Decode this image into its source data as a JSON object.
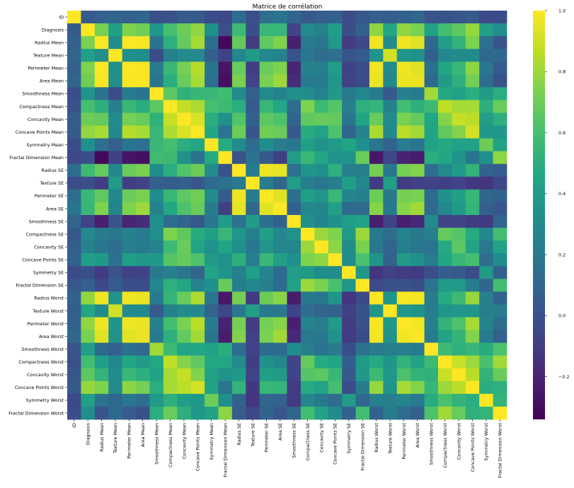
{
  "chart_data": {
    "type": "heatmap",
    "title": "Matrice de corrélation",
    "labels": [
      "ID",
      "Diagnosis",
      "Radius Mean",
      "Texture Mean",
      "Perimeter Mean",
      "Area Mean",
      "Smoothness Mean",
      "Compactness Mean",
      "Concavity Mean",
      "Concave Points Mean",
      "Symmetry Mean",
      "Fractal Dimension Mean",
      "Radius SE",
      "Texture SE",
      "Perimeter SE",
      "Area SE",
      "Smoothness SE",
      "Compactness SE",
      "Concavity SE",
      "Concave Points SE",
      "Symmetry SE",
      "Fractal Dimension SE",
      "Radius Worst",
      "Texture Worst",
      "Perimeter Worst",
      "Area Worst",
      "Smoothness Worst",
      "Compactness Worst",
      "Concavity Worst",
      "Concave Points Worst",
      "Symmetry Worst",
      "Fractal Dimension Worst"
    ],
    "colorbar": {
      "vmin": -0.34,
      "vmax": 1.0,
      "ticks": [
        1.0,
        0.8,
        0.6,
        0.4,
        0.2,
        0.0,
        -0.2
      ],
      "tick_labels": [
        "1.0",
        "0.8",
        "0.6",
        "0.4",
        "0.2",
        "0.0",
        "−0.2"
      ],
      "colormap": "viridis"
    },
    "values": [
      [
        1.0,
        0.04,
        0.07,
        0.1,
        0.07,
        0.1,
        -0.01,
        0.0,
        0.05,
        0.04,
        -0.02,
        -0.05,
        0.14,
        -0.01,
        0.14,
        0.18,
        0.1,
        0.03,
        0.06,
        0.08,
        -0.02,
        0.03,
        0.08,
        0.06,
        0.08,
        0.11,
        0.01,
        0.0,
        0.02,
        0.04,
        -0.04,
        -0.03
      ],
      [
        0.04,
        1.0,
        0.73,
        0.42,
        0.74,
        0.71,
        0.36,
        0.6,
        0.7,
        0.78,
        0.33,
        -0.01,
        0.57,
        -0.01,
        0.56,
        0.55,
        -0.07,
        0.29,
        0.25,
        0.41,
        -0.01,
        0.08,
        0.78,
        0.46,
        0.78,
        0.73,
        0.42,
        0.59,
        0.66,
        0.79,
        0.42,
        0.32
      ],
      [
        0.07,
        0.73,
        1.0,
        0.32,
        1.0,
        0.99,
        0.17,
        0.51,
        0.68,
        0.82,
        0.15,
        -0.31,
        0.68,
        -0.1,
        0.67,
        0.74,
        -0.22,
        0.21,
        0.19,
        0.38,
        -0.1,
        -0.04,
        0.97,
        0.3,
        0.97,
        0.94,
        0.12,
        0.41,
        0.53,
        0.74,
        0.16,
        0.01
      ],
      [
        0.1,
        0.42,
        0.32,
        1.0,
        0.33,
        0.32,
        -0.02,
        0.24,
        0.3,
        0.29,
        0.07,
        -0.08,
        0.28,
        0.39,
        0.28,
        0.26,
        0.01,
        0.19,
        0.14,
        0.16,
        0.01,
        0.05,
        0.35,
        0.91,
        0.36,
        0.34,
        0.08,
        0.28,
        0.3,
        0.3,
        0.11,
        0.12
      ],
      [
        0.07,
        0.74,
        1.0,
        0.33,
        1.0,
        0.99,
        0.21,
        0.56,
        0.72,
        0.85,
        0.18,
        -0.26,
        0.69,
        -0.09,
        0.69,
        0.74,
        -0.2,
        0.25,
        0.23,
        0.41,
        -0.08,
        -0.01,
        0.97,
        0.3,
        0.97,
        0.94,
        0.15,
        0.46,
        0.56,
        0.77,
        0.19,
        0.05
      ],
      [
        0.1,
        0.71,
        0.99,
        0.32,
        0.99,
        1.0,
        0.18,
        0.5,
        0.69,
        0.82,
        0.15,
        -0.28,
        0.73,
        -0.07,
        0.73,
        0.8,
        -0.17,
        0.21,
        0.21,
        0.37,
        -0.07,
        -0.02,
        0.96,
        0.29,
        0.96,
        0.96,
        0.12,
        0.39,
        0.51,
        0.72,
        0.14,
        0.0
      ],
      [
        -0.01,
        0.36,
        0.17,
        -0.02,
        0.21,
        0.18,
        1.0,
        0.66,
        0.52,
        0.55,
        0.56,
        0.58,
        0.3,
        0.07,
        0.3,
        0.25,
        0.33,
        0.32,
        0.25,
        0.38,
        0.2,
        0.28,
        0.21,
        0.04,
        0.24,
        0.21,
        0.81,
        0.47,
        0.43,
        0.5,
        0.39,
        0.5
      ],
      [
        0.0,
        0.6,
        0.51,
        0.24,
        0.56,
        0.5,
        0.66,
        1.0,
        0.88,
        0.83,
        0.6,
        0.57,
        0.5,
        0.05,
        0.55,
        0.46,
        0.14,
        0.74,
        0.57,
        0.64,
        0.23,
        0.51,
        0.54,
        0.25,
        0.59,
        0.51,
        0.57,
        0.87,
        0.82,
        0.82,
        0.51,
        0.69
      ],
      [
        0.05,
        0.7,
        0.68,
        0.3,
        0.72,
        0.69,
        0.52,
        0.88,
        1.0,
        0.92,
        0.5,
        0.34,
        0.63,
        0.08,
        0.66,
        0.62,
        0.1,
        0.67,
        0.69,
        0.68,
        0.18,
        0.45,
        0.69,
        0.3,
        0.73,
        0.68,
        0.45,
        0.75,
        0.88,
        0.86,
        0.41,
        0.51
      ],
      [
        0.04,
        0.78,
        0.82,
        0.29,
        0.85,
        0.82,
        0.55,
        0.83,
        0.92,
        1.0,
        0.46,
        0.17,
        0.7,
        0.02,
        0.71,
        0.69,
        0.03,
        0.49,
        0.44,
        0.62,
        0.1,
        0.26,
        0.83,
        0.29,
        0.86,
        0.81,
        0.45,
        0.67,
        0.75,
        0.91,
        0.38,
        0.37
      ],
      [
        -0.02,
        0.33,
        0.15,
        0.07,
        0.18,
        0.15,
        0.56,
        0.6,
        0.5,
        0.46,
        1.0,
        0.48,
        0.3,
        0.13,
        0.31,
        0.22,
        0.19,
        0.42,
        0.34,
        0.39,
        0.45,
        0.33,
        0.19,
        0.09,
        0.22,
        0.18,
        0.43,
        0.47,
        0.43,
        0.43,
        0.7,
        0.44
      ],
      [
        -0.05,
        -0.01,
        -0.31,
        -0.08,
        -0.26,
        -0.28,
        0.58,
        0.57,
        0.34,
        0.17,
        0.48,
        1.0,
        0.0,
        0.16,
        0.04,
        -0.09,
        0.4,
        0.56,
        0.45,
        0.34,
        0.35,
        0.69,
        -0.25,
        -0.05,
        -0.21,
        -0.23,
        0.5,
        0.46,
        0.35,
        0.18,
        0.33,
        0.77
      ],
      [
        0.14,
        0.57,
        0.68,
        0.28,
        0.69,
        0.73,
        0.3,
        0.5,
        0.63,
        0.7,
        0.3,
        0.0,
        1.0,
        0.21,
        0.97,
        0.95,
        0.16,
        0.36,
        0.33,
        0.51,
        0.24,
        0.23,
        0.72,
        0.19,
        0.72,
        0.75,
        0.14,
        0.29,
        0.38,
        0.53,
        0.09,
        0.05
      ],
      [
        -0.01,
        -0.01,
        -0.1,
        0.39,
        -0.09,
        -0.07,
        0.07,
        0.05,
        0.08,
        0.02,
        0.13,
        0.16,
        0.21,
        1.0,
        0.22,
        0.11,
        0.4,
        0.23,
        0.19,
        0.23,
        0.41,
        0.28,
        -0.11,
        0.41,
        -0.1,
        -0.08,
        -0.07,
        -0.09,
        -0.07,
        -0.12,
        -0.13,
        -0.05
      ],
      [
        0.14,
        0.56,
        0.67,
        0.28,
        0.69,
        0.73,
        0.3,
        0.55,
        0.66,
        0.71,
        0.31,
        0.04,
        0.97,
        0.22,
        1.0,
        0.94,
        0.15,
        0.42,
        0.36,
        0.56,
        0.27,
        0.24,
        0.7,
        0.2,
        0.72,
        0.73,
        0.13,
        0.34,
        0.42,
        0.55,
        0.11,
        0.09
      ],
      [
        0.18,
        0.55,
        0.74,
        0.26,
        0.74,
        0.8,
        0.25,
        0.46,
        0.62,
        0.69,
        0.22,
        -0.09,
        0.95,
        0.11,
        0.94,
        1.0,
        0.08,
        0.28,
        0.27,
        0.42,
        0.13,
        0.13,
        0.76,
        0.2,
        0.76,
        0.81,
        0.13,
        0.28,
        0.39,
        0.54,
        0.07,
        0.02
      ],
      [
        0.1,
        -0.07,
        -0.22,
        0.01,
        -0.2,
        -0.17,
        0.33,
        0.14,
        0.1,
        0.03,
        0.19,
        0.4,
        0.16,
        0.4,
        0.15,
        0.08,
        1.0,
        0.34,
        0.27,
        0.33,
        0.41,
        0.43,
        -0.23,
        -0.07,
        -0.22,
        -0.18,
        0.31,
        -0.06,
        -0.06,
        -0.1,
        -0.11,
        0.1
      ],
      [
        0.03,
        0.29,
        0.21,
        0.19,
        0.25,
        0.21,
        0.32,
        0.74,
        0.67,
        0.49,
        0.42,
        0.56,
        0.36,
        0.23,
        0.42,
        0.28,
        0.34,
        1.0,
        0.8,
        0.74,
        0.39,
        0.8,
        0.2,
        0.14,
        0.26,
        0.2,
        0.23,
        0.68,
        0.64,
        0.48,
        0.28,
        0.59
      ],
      [
        0.06,
        0.25,
        0.19,
        0.14,
        0.23,
        0.21,
        0.25,
        0.57,
        0.69,
        0.44,
        0.34,
        0.45,
        0.33,
        0.19,
        0.36,
        0.27,
        0.27,
        0.8,
        1.0,
        0.77,
        0.31,
        0.73,
        0.19,
        0.1,
        0.23,
        0.19,
        0.17,
        0.48,
        0.66,
        0.44,
        0.2,
        0.44
      ],
      [
        0.08,
        0.41,
        0.38,
        0.16,
        0.41,
        0.37,
        0.38,
        0.64,
        0.68,
        0.62,
        0.39,
        0.34,
        0.51,
        0.23,
        0.56,
        0.42,
        0.33,
        0.74,
        0.77,
        1.0,
        0.31,
        0.61,
        0.36,
        0.09,
        0.39,
        0.34,
        0.22,
        0.45,
        0.55,
        0.6,
        0.14,
        0.31
      ],
      [
        -0.02,
        -0.01,
        -0.1,
        0.01,
        -0.08,
        -0.07,
        0.2,
        0.23,
        0.18,
        0.1,
        0.45,
        0.35,
        0.24,
        0.41,
        0.27,
        0.13,
        0.41,
        0.39,
        0.31,
        0.31,
        1.0,
        0.37,
        -0.13,
        -0.08,
        -0.1,
        -0.11,
        -0.01,
        0.06,
        0.04,
        -0.03,
        0.39,
        0.08
      ],
      [
        0.03,
        0.08,
        -0.04,
        0.05,
        -0.01,
        -0.02,
        0.28,
        0.51,
        0.45,
        0.26,
        0.33,
        0.69,
        0.23,
        0.28,
        0.24,
        0.13,
        0.43,
        0.8,
        0.73,
        0.61,
        0.37,
        1.0,
        -0.04,
        -0.0,
        -0.0,
        -0.02,
        0.17,
        0.39,
        0.38,
        0.22,
        0.11,
        0.59
      ],
      [
        0.08,
        0.78,
        0.97,
        0.35,
        0.97,
        0.96,
        0.21,
        0.54,
        0.69,
        0.83,
        0.19,
        -0.25,
        0.72,
        -0.11,
        0.7,
        0.76,
        -0.23,
        0.2,
        0.19,
        0.36,
        -0.13,
        -0.04,
        1.0,
        0.36,
        0.99,
        0.98,
        0.22,
        0.48,
        0.57,
        0.79,
        0.24,
        0.09
      ],
      [
        0.06,
        0.46,
        0.3,
        0.91,
        0.3,
        0.29,
        0.04,
        0.25,
        0.3,
        0.29,
        0.09,
        -0.05,
        0.19,
        0.41,
        0.2,
        0.2,
        -0.07,
        0.14,
        0.1,
        0.09,
        -0.08,
        -0.0,
        0.36,
        1.0,
        0.37,
        0.35,
        0.23,
        0.36,
        0.37,
        0.36,
        0.23,
        0.22
      ],
      [
        0.08,
        0.78,
        0.97,
        0.36,
        0.97,
        0.96,
        0.24,
        0.59,
        0.73,
        0.86,
        0.22,
        -0.21,
        0.72,
        -0.1,
        0.72,
        0.76,
        -0.22,
        0.26,
        0.23,
        0.39,
        -0.1,
        -0.0,
        0.99,
        0.37,
        1.0,
        0.98,
        0.24,
        0.53,
        0.62,
        0.82,
        0.27,
        0.14
      ],
      [
        0.11,
        0.73,
        0.94,
        0.34,
        0.94,
        0.96,
        0.21,
        0.51,
        0.68,
        0.81,
        0.18,
        -0.23,
        0.75,
        -0.08,
        0.73,
        0.81,
        -0.18,
        0.2,
        0.19,
        0.34,
        -0.11,
        -0.02,
        0.98,
        0.35,
        0.98,
        1.0,
        0.21,
        0.44,
        0.54,
        0.75,
        0.21,
        0.08
      ],
      [
        0.01,
        0.42,
        0.12,
        0.08,
        0.15,
        0.12,
        0.81,
        0.57,
        0.45,
        0.45,
        0.43,
        0.5,
        0.14,
        -0.07,
        0.13,
        0.13,
        0.31,
        0.23,
        0.17,
        0.22,
        -0.01,
        0.17,
        0.22,
        0.23,
        0.24,
        0.21,
        1.0,
        0.57,
        0.52,
        0.55,
        0.49,
        0.62
      ],
      [
        0.0,
        0.59,
        0.41,
        0.28,
        0.46,
        0.39,
        0.47,
        0.87,
        0.75,
        0.67,
        0.47,
        0.46,
        0.29,
        -0.09,
        0.34,
        0.28,
        -0.06,
        0.68,
        0.48,
        0.45,
        0.06,
        0.39,
        0.48,
        0.36,
        0.53,
        0.44,
        0.57,
        1.0,
        0.89,
        0.8,
        0.61,
        0.81
      ],
      [
        0.02,
        0.66,
        0.53,
        0.3,
        0.56,
        0.51,
        0.43,
        0.82,
        0.88,
        0.75,
        0.43,
        0.35,
        0.38,
        -0.07,
        0.42,
        0.39,
        -0.06,
        0.64,
        0.66,
        0.55,
        0.04,
        0.38,
        0.57,
        0.37,
        0.62,
        0.54,
        0.52,
        0.89,
        1.0,
        0.86,
        0.53,
        0.69
      ],
      [
        0.04,
        0.79,
        0.74,
        0.3,
        0.77,
        0.72,
        0.5,
        0.82,
        0.86,
        0.91,
        0.43,
        0.18,
        0.53,
        -0.12,
        0.55,
        0.54,
        -0.1,
        0.48,
        0.44,
        0.6,
        -0.03,
        0.22,
        0.79,
        0.36,
        0.82,
        0.75,
        0.55,
        0.8,
        0.86,
        1.0,
        0.5,
        0.51
      ],
      [
        -0.04,
        0.42,
        0.16,
        0.11,
        0.19,
        0.14,
        0.39,
        0.51,
        0.41,
        0.38,
        0.7,
        0.33,
        0.09,
        -0.13,
        0.11,
        0.07,
        -0.11,
        0.28,
        0.2,
        0.14,
        0.39,
        0.11,
        0.24,
        0.23,
        0.27,
        0.21,
        0.49,
        0.61,
        0.53,
        0.5,
        1.0,
        0.54
      ],
      [
        -0.03,
        0.32,
        0.01,
        0.12,
        0.05,
        0.0,
        0.5,
        0.69,
        0.51,
        0.37,
        0.44,
        0.77,
        0.05,
        -0.05,
        0.09,
        0.02,
        0.1,
        0.59,
        0.44,
        0.31,
        0.08,
        0.59,
        0.09,
        0.22,
        0.14,
        0.08,
        0.62,
        0.81,
        0.69,
        0.51,
        0.54,
        1.0
      ]
    ]
  }
}
